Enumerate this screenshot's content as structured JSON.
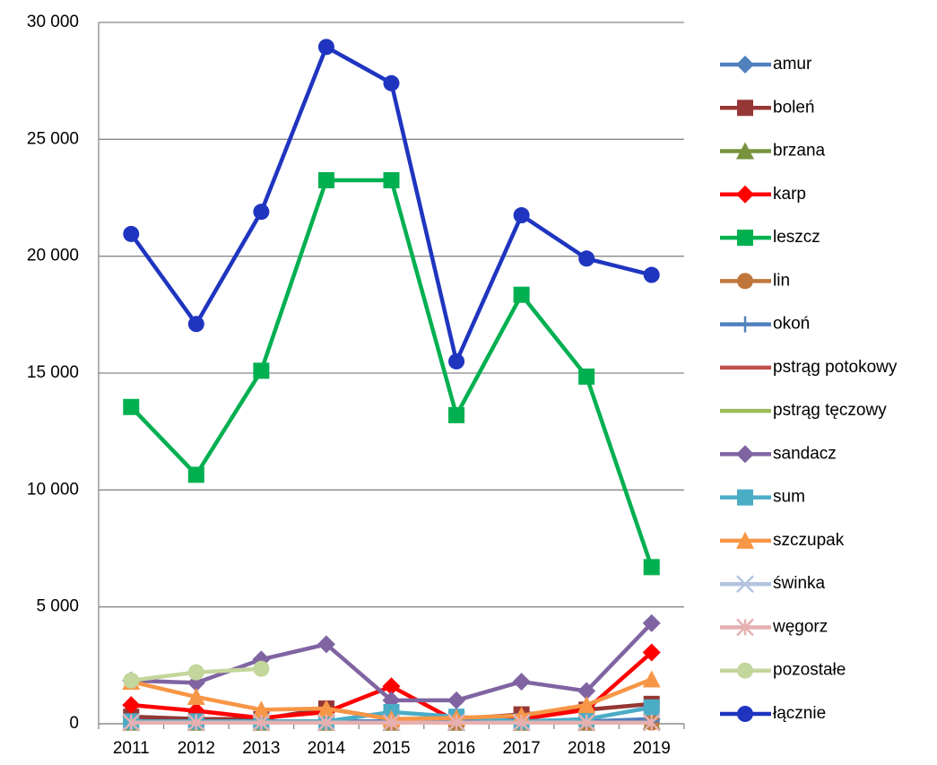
{
  "chart_data": {
    "type": "line",
    "categories": [
      "2011",
      "2012",
      "2013",
      "2014",
      "2015",
      "2016",
      "2017",
      "2018",
      "2019"
    ],
    "ylim": [
      0,
      30000
    ],
    "yticks": [
      0,
      {
        "value": 5000,
        "label": "5 000"
      },
      {
        "value": 10000,
        "label": "10 000"
      },
      {
        "value": 15000,
        "label": "15 000"
      },
      {
        "value": 20000,
        "label": "20 000"
      },
      {
        "value": 25000,
        "label": "25 000"
      },
      {
        "value": 30000,
        "label": "30 000"
      }
    ],
    "grid": true,
    "legend": "right",
    "series": [
      {
        "name": "amur",
        "color": "#4f81bd",
        "marker": "diamond",
        "values": [
          300,
          200,
          100,
          100,
          100,
          100,
          100,
          100,
          200
        ]
      },
      {
        "name": "boleń",
        "color": "#953735",
        "marker": "square",
        "values": [
          300,
          200,
          200,
          650,
          200,
          200,
          400,
          600,
          850
        ]
      },
      {
        "name": "brzana",
        "color": "#77933c",
        "marker": "triangle",
        "values": [
          50,
          50,
          50,
          50,
          50,
          50,
          50,
          50,
          100
        ]
      },
      {
        "name": "karp",
        "color": "#ff0000",
        "marker": "diamond",
        "values": [
          800,
          550,
          250,
          500,
          1600,
          100,
          200,
          600,
          3050
        ]
      },
      {
        "name": "leszcz",
        "color": "#00b050",
        "marker": "square",
        "values": [
          13550,
          10650,
          15100,
          23250,
          23250,
          13200,
          18350,
          14850,
          6700
        ]
      },
      {
        "name": "lin",
        "color": "#c0763a",
        "marker": "circle",
        "values": [
          100,
          100,
          50,
          50,
          50,
          50,
          50,
          50,
          50
        ]
      },
      {
        "name": "okoń",
        "color": "#4f81bd",
        "marker": "plus",
        "values": [
          100,
          100,
          100,
          100,
          100,
          100,
          100,
          100,
          100
        ]
      },
      {
        "name": "pstrąg potokowy",
        "color": "#c0504d",
        "marker": "none",
        "values": [
          50,
          50,
          50,
          50,
          50,
          50,
          50,
          50,
          50
        ]
      },
      {
        "name": "pstrąg tęczowy",
        "color": "#9bbb59",
        "marker": "none",
        "values": [
          50,
          50,
          50,
          50,
          50,
          50,
          50,
          50,
          50
        ]
      },
      {
        "name": "sandacz",
        "color": "#8064a2",
        "marker": "diamond",
        "values": [
          1850,
          1750,
          2750,
          3400,
          1000,
          1000,
          1800,
          1400,
          4300
        ]
      },
      {
        "name": "sum",
        "color": "#4bacc6",
        "marker": "square",
        "values": [
          100,
          100,
          100,
          100,
          500,
          300,
          100,
          200,
          700
        ]
      },
      {
        "name": "szczupak",
        "color": "#f79646",
        "marker": "triangle",
        "values": [
          1800,
          1150,
          600,
          650,
          200,
          250,
          350,
          800,
          1900
        ]
      },
      {
        "name": "świnka",
        "color": "#b3c3e0",
        "marker": "x",
        "values": [
          50,
          50,
          50,
          50,
          50,
          50,
          50,
          50,
          50
        ]
      },
      {
        "name": "węgorz",
        "color": "#e6b0b0",
        "marker": "star",
        "values": [
          50,
          50,
          50,
          50,
          50,
          50,
          50,
          50,
          50
        ]
      },
      {
        "name": "pozostałe",
        "color": "#c3d69b",
        "marker": "circle",
        "values": [
          1850,
          2200,
          2350,
          null,
          null,
          null,
          null,
          null,
          null
        ]
      },
      {
        "name": "łącznie",
        "color": "#1f35c0",
        "marker": "circle",
        "values": [
          20950,
          17100,
          21900,
          28950,
          27400,
          15500,
          21750,
          19900,
          19200
        ]
      }
    ]
  }
}
